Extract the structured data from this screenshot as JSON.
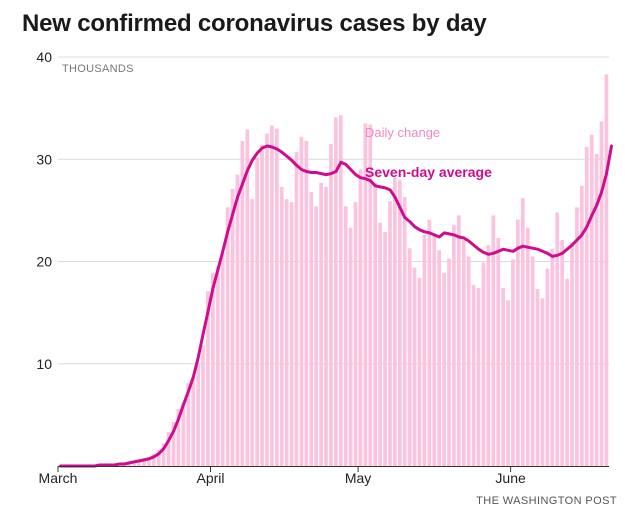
{
  "chart_data": {
    "type": "bar+line",
    "title": "New confirmed coronavirus cases by day",
    "y_unit_label": "THOUSANDS",
    "ylim": [
      0,
      40
    ],
    "y_ticks": [
      10,
      20,
      30,
      40
    ],
    "x_month_labels": [
      {
        "label": "March",
        "day_index": 0
      },
      {
        "label": "April",
        "day_index": 31
      },
      {
        "label": "May",
        "day_index": 61
      },
      {
        "label": "June",
        "day_index": 92
      }
    ],
    "series": [
      {
        "name": "Daily change",
        "type": "bar",
        "color": "#fbc3de",
        "start": "March 1",
        "values": [
          0,
          0,
          0,
          0,
          0,
          0,
          0,
          0,
          0,
          0.1,
          0.1,
          0.1,
          0.1,
          0.2,
          0.3,
          0.4,
          0.6,
          0.7,
          0.9,
          1.2,
          1.6,
          2.2,
          3.3,
          4.3,
          5.6,
          6.2,
          8.1,
          8.6,
          10.1,
          11.8,
          17.1,
          18.9,
          19.5,
          20.8,
          25.3,
          27.1,
          28.5,
          31.8,
          32.9,
          26.1,
          30.2,
          31.4,
          32.5,
          33.3,
          33.0,
          27.3,
          26.1,
          25.8,
          30.7,
          32.2,
          31.8,
          26.8,
          25.4,
          27.7,
          27.3,
          31.5,
          34.1,
          34.3,
          25.4,
          23.3,
          25.8,
          29.0,
          33.5,
          33.4,
          27.7,
          23.8,
          22.9,
          25.9,
          28.2,
          28.0,
          26.3,
          21.3,
          19.4,
          18.4,
          22.6,
          24.1,
          22.7,
          21.1,
          18.9,
          20.3,
          23.6,
          24.5,
          22.1,
          20.5,
          17.7,
          17.4,
          19.9,
          21.6,
          24.5,
          22.3,
          17.4,
          16.2,
          20.2,
          24.1,
          26.2,
          23.3,
          20.5,
          17.3,
          16.4,
          19.3,
          21.2,
          24.8,
          22.1,
          18.3,
          21.9,
          25.3,
          27.4,
          31.2,
          32.4,
          30.5,
          33.7,
          38.3
        ]
      },
      {
        "name": "Seven-day average",
        "type": "line",
        "color": "#cc0e8e",
        "start": "March 1",
        "values": [
          0,
          0,
          0,
          0,
          0,
          0,
          0,
          0,
          0.1,
          0.1,
          0.1,
          0.1,
          0.2,
          0.2,
          0.3,
          0.4,
          0.5,
          0.6,
          0.7,
          0.9,
          1.2,
          1.7,
          2.5,
          3.4,
          4.6,
          6.0,
          7.3,
          8.7,
          10.6,
          12.9,
          15.1,
          17.4,
          19.2,
          21.0,
          22.9,
          24.6,
          26.3,
          27.6,
          28.9,
          29.9,
          30.6,
          31.1,
          31.3,
          31.2,
          31.0,
          30.7,
          30.3,
          29.9,
          29.4,
          29.0,
          28.8,
          28.7,
          28.7,
          28.6,
          28.5,
          28.6,
          28.8,
          29.7,
          29.5,
          29.0,
          28.5,
          28.2,
          28.1,
          27.9,
          27.4,
          27.3,
          27.2,
          27.0,
          26.3,
          25.3,
          24.3,
          23.9,
          23.4,
          23.1,
          22.9,
          22.8,
          22.6,
          22.4,
          22.8,
          22.7,
          22.6,
          22.4,
          22.3,
          22.0,
          21.6,
          21.2,
          20.9,
          20.7,
          20.8,
          21.0,
          21.2,
          21.1,
          21.0,
          21.3,
          21.5,
          21.4,
          21.3,
          21.2,
          21.0,
          20.8,
          20.5,
          20.6,
          20.8,
          21.2,
          21.6,
          22.1,
          22.6,
          23.4,
          24.5,
          25.5,
          26.8,
          28.6,
          31.3
        ]
      }
    ],
    "legend": [
      "Daily change",
      "Seven-day average"
    ]
  },
  "source_credit": "THE WASHINGTON POST"
}
